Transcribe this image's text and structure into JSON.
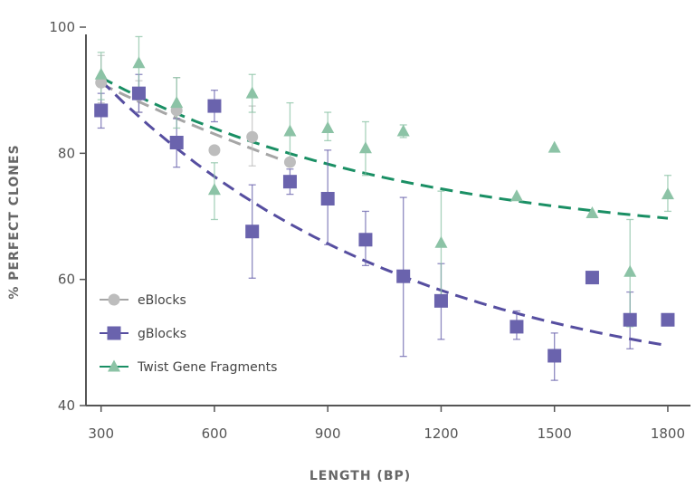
{
  "chart_data": {
    "type": "scatter",
    "title": "",
    "xlabel": "LENGTH (BP)",
    "ylabel": "% PERFECT CLONES",
    "xlim": [
      260,
      1860
    ],
    "ylim": [
      40,
      100
    ],
    "xticks": [
      300,
      600,
      900,
      1200,
      1500,
      1800
    ],
    "xtick_labels": [
      "300",
      "600",
      "900",
      "1200",
      "1500",
      "1800"
    ],
    "yticks": [
      40,
      60,
      80,
      100
    ],
    "ytick_labels": [
      "40",
      "60",
      "80",
      "100"
    ],
    "grid": false,
    "legend_position": "bottom-left",
    "series": [
      {
        "name": "eBlocks",
        "marker": "circle",
        "color": "#bdbdbd",
        "x": [
          300,
          400,
          500,
          600,
          700,
          800
        ],
        "y": [
          91.2,
          89.2,
          86.8,
          80.5,
          82.6,
          78.6
        ],
        "err_low": [
          88.0,
          86.5,
          85.5,
          80.5,
          78.0,
          78.6
        ],
        "err_high": [
          95.5,
          91.5,
          92.0,
          80.5,
          87.5,
          78.6
        ],
        "trend_x": [
          300,
          800
        ],
        "trend_y": [
          91.0,
          78.5
        ]
      },
      {
        "name": "gBlocks",
        "marker": "square",
        "color": "#6a63ad",
        "x": [
          300,
          400,
          500,
          600,
          700,
          800,
          900,
          1000,
          1100,
          1200,
          1400,
          1500,
          1600,
          1700,
          1800
        ],
        "y": [
          86.8,
          89.5,
          81.7,
          87.5,
          67.6,
          75.5,
          72.8,
          66.3,
          60.5,
          56.6,
          52.5,
          47.9,
          60.3,
          53.6,
          53.6
        ],
        "err_low": [
          84.0,
          86.5,
          77.8,
          85.0,
          60.2,
          73.5,
          65.5,
          62.2,
          47.8,
          50.5,
          50.5,
          44.0,
          60.3,
          49.0,
          53.6
        ],
        "err_high": [
          89.5,
          92.5,
          85.5,
          90.0,
          75.0,
          77.5,
          80.5,
          70.8,
          73.0,
          62.5,
          55.0,
          51.5,
          60.3,
          58.0,
          53.6
        ],
        "trend_x": [
          300,
          1800
        ],
        "trend_y": [
          91.5,
          49.5
        ]
      },
      {
        "name": "Twist Gene Fragments",
        "marker": "triangle",
        "color": "#8cc3a6",
        "x": [
          300,
          400,
          500,
          600,
          700,
          800,
          900,
          1000,
          1100,
          1200,
          1400,
          1500,
          1600,
          1700,
          1800
        ],
        "y": [
          92.5,
          94.3,
          88.0,
          74.2,
          89.5,
          83.5,
          84.0,
          80.8,
          83.5,
          65.8,
          73.2,
          80.9,
          70.5,
          61.2,
          73.5
        ],
        "err_low": [
          88.5,
          89.5,
          84.0,
          69.5,
          86.5,
          79.0,
          82.0,
          76.5,
          82.5,
          57.5,
          73.2,
          80.9,
          70.5,
          52.5,
          70.8
        ],
        "err_high": [
          96.0,
          98.5,
          92.0,
          78.5,
          92.5,
          88.0,
          86.5,
          85.0,
          84.5,
          74.0,
          73.2,
          80.9,
          70.5,
          69.5,
          76.5
        ],
        "trend_x": [
          300,
          1800
        ],
        "trend_y": [
          92.0,
          69.7
        ]
      }
    ],
    "trend_colors": {
      "eBlocks": "#a6a6a6",
      "gBlocks": "#564ea0",
      "Twist Gene Fragments": "#1a8f64"
    }
  }
}
